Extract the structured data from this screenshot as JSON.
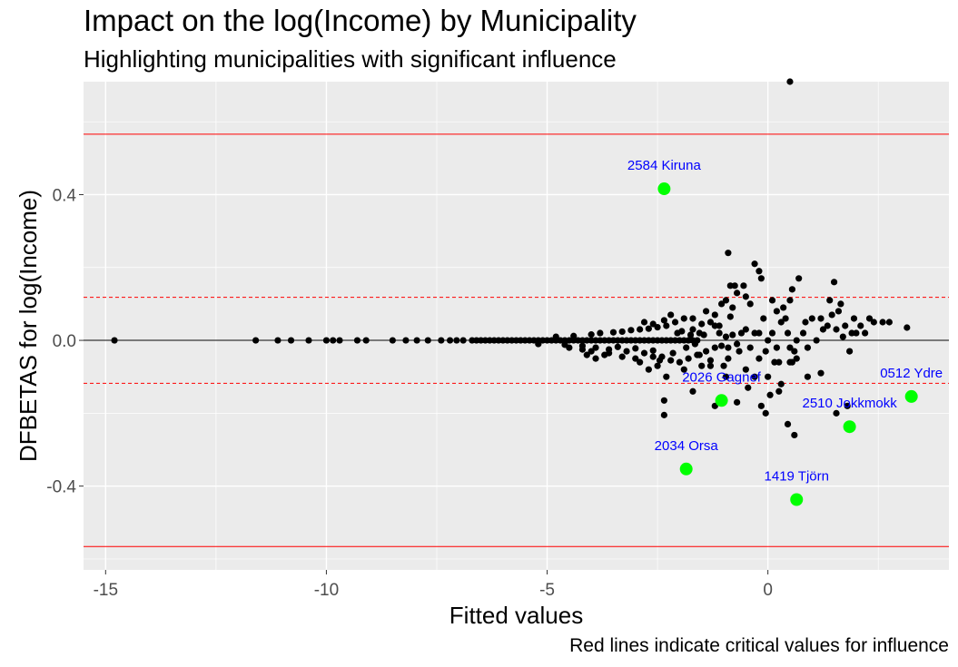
{
  "chart_data": {
    "type": "scatter",
    "title": "Impact on the log(Income) by Municipality",
    "subtitle": "Highlighting municipalities with significant influence",
    "caption": "Red lines indicate critical values for influence",
    "xlabel": "Fitted values",
    "ylabel": "DFBETAS for log(Income)",
    "xlim": [
      -15.5,
      4.1
    ],
    "ylim": [
      -0.63,
      0.71
    ],
    "x_ticks": [
      -15,
      -10,
      -5,
      0
    ],
    "x_tick_labels": [
      "-15",
      "-10",
      "-5",
      "0"
    ],
    "y_ticks": [
      -0.4,
      0.0,
      0.4
    ],
    "y_tick_labels": [
      "-0.4",
      "0.0",
      "0.4"
    ],
    "grid": true,
    "background": "#ebebeb",
    "reference_lines": [
      {
        "y": 0.0,
        "color": "#000000",
        "style": "solid"
      },
      {
        "y": 0.118,
        "color": "#ff0000",
        "style": "dashed"
      },
      {
        "y": -0.118,
        "color": "#ff0000",
        "style": "dashed"
      },
      {
        "y": 0.566,
        "color": "#ff0000",
        "style": "solid"
      },
      {
        "y": -0.566,
        "color": "#ff0000",
        "style": "solid"
      }
    ],
    "points": [
      [
        -14.8,
        0.0
      ],
      [
        -11.6,
        0.0
      ],
      [
        -11.1,
        0.0
      ],
      [
        -10.8,
        0.0
      ],
      [
        -10.4,
        0.0
      ],
      [
        -10.0,
        0.0
      ],
      [
        -9.85,
        0.0
      ],
      [
        -9.7,
        0.0
      ],
      [
        -9.3,
        0.0
      ],
      [
        -9.1,
        0.0
      ],
      [
        -8.5,
        0.0
      ],
      [
        -8.2,
        0.0
      ],
      [
        -7.95,
        0.0
      ],
      [
        -7.7,
        0.0
      ],
      [
        -7.4,
        0.0
      ],
      [
        -7.2,
        0.0
      ],
      [
        -7.05,
        0.0
      ],
      [
        -6.9,
        0.0
      ],
      [
        -6.7,
        0.0
      ],
      [
        -6.6,
        0.0
      ],
      [
        -6.5,
        0.0
      ],
      [
        -6.4,
        0.0
      ],
      [
        -6.3,
        0.0
      ],
      [
        -6.2,
        0.0
      ],
      [
        -6.1,
        0.0
      ],
      [
        -6.0,
        0.0
      ],
      [
        -5.9,
        0.0
      ],
      [
        -5.8,
        0.0
      ],
      [
        -5.7,
        0.0
      ],
      [
        -5.6,
        0.0
      ],
      [
        -5.5,
        0.0
      ],
      [
        -5.4,
        0.0
      ],
      [
        -5.3,
        0.0
      ],
      [
        -5.2,
        0.0
      ],
      [
        -5.1,
        0.0
      ],
      [
        -5.0,
        0.0
      ],
      [
        -4.9,
        0.0
      ],
      [
        -4.8,
        0.0
      ],
      [
        -4.7,
        0.0
      ],
      [
        -4.6,
        0.0
      ],
      [
        -4.5,
        0.0
      ],
      [
        -4.4,
        0.0
      ],
      [
        -4.3,
        0.0
      ],
      [
        -4.2,
        0.0
      ],
      [
        -4.1,
        0.0
      ],
      [
        -4.0,
        0.0
      ],
      [
        -3.9,
        0.0
      ],
      [
        -3.8,
        0.0
      ],
      [
        -3.7,
        0.0
      ],
      [
        -3.6,
        0.0
      ],
      [
        -3.5,
        0.0
      ],
      [
        -3.4,
        0.0
      ],
      [
        -3.3,
        0.0
      ],
      [
        -3.2,
        0.0
      ],
      [
        -3.1,
        0.0
      ],
      [
        -3.0,
        0.0
      ],
      [
        -2.9,
        0.0
      ],
      [
        -2.8,
        0.0
      ],
      [
        -2.7,
        0.0
      ],
      [
        -2.6,
        0.0
      ],
      [
        -2.5,
        0.0
      ],
      [
        -2.4,
        0.0
      ],
      [
        -2.3,
        0.0
      ],
      [
        -2.2,
        0.0
      ],
      [
        -2.1,
        0.0
      ],
      [
        -2.0,
        0.0
      ],
      [
        -1.9,
        0.0
      ],
      [
        -1.8,
        0.0
      ],
      [
        -1.7,
        0.0
      ],
      [
        -1.6,
        0.0
      ],
      [
        -5.2,
        -0.01
      ],
      [
        -4.8,
        0.01
      ],
      [
        -4.6,
        -0.012
      ],
      [
        -4.4,
        0.012
      ],
      [
        -4.5,
        -0.02
      ],
      [
        -4.2,
        -0.015
      ],
      [
        -4.0,
        0.016
      ],
      [
        -3.9,
        -0.02
      ],
      [
        -3.8,
        0.02
      ],
      [
        -3.6,
        -0.025
      ],
      [
        -3.5,
        0.022
      ],
      [
        -3.4,
        -0.018
      ],
      [
        -3.3,
        0.024
      ],
      [
        -3.2,
        -0.03
      ],
      [
        -3.1,
        0.028
      ],
      [
        -3.0,
        -0.022
      ],
      [
        -2.9,
        0.03
      ],
      [
        -2.8,
        -0.035
      ],
      [
        -2.7,
        0.032
      ],
      [
        -2.6,
        -0.028
      ],
      [
        -2.5,
        0.036
      ],
      [
        -4.2,
        -0.025
      ],
      [
        -4.0,
        -0.03
      ],
      [
        -3.7,
        -0.04
      ],
      [
        -3.0,
        -0.05
      ],
      [
        -2.9,
        -0.06
      ],
      [
        -2.8,
        0.05
      ],
      [
        -2.4,
        -0.045
      ],
      [
        -2.3,
        0.04
      ],
      [
        -2.2,
        -0.055
      ],
      [
        -2.1,
        0.05
      ],
      [
        -2.0,
        -0.06
      ],
      [
        -1.9,
        0.06
      ],
      [
        -1.8,
        -0.05
      ],
      [
        -1.7,
        0.03
      ],
      [
        -1.6,
        -0.04
      ],
      [
        -1.5,
        0.045
      ],
      [
        -1.4,
        -0.03
      ],
      [
        -1.3,
        0.05
      ],
      [
        -1.2,
        -0.02
      ],
      [
        -4.1,
        -0.04
      ],
      [
        -3.9,
        -0.05
      ],
      [
        -3.6,
        -0.035
      ],
      [
        -3.3,
        -0.045
      ],
      [
        -2.7,
        -0.08
      ],
      [
        -2.6,
        0.045
      ],
      [
        -2.5,
        -0.07
      ],
      [
        -2.3,
        -0.1
      ],
      [
        -2.2,
        0.07
      ],
      [
        -1.9,
        -0.08
      ],
      [
        -1.7,
        0.06
      ],
      [
        -1.5,
        -0.07
      ],
      [
        -1.4,
        0.08
      ],
      [
        -1.3,
        -0.055
      ],
      [
        -1.2,
        0.04
      ],
      [
        -2.6,
        -0.045
      ],
      [
        -2.45,
        -0.055
      ],
      [
        -2.35,
        0.055
      ],
      [
        -2.15,
        -0.035
      ],
      [
        -2.05,
        0.02
      ],
      [
        -1.95,
        0.025
      ],
      [
        -1.85,
        -0.02
      ],
      [
        -1.75,
        0.015
      ],
      [
        -1.65,
        -0.01
      ],
      [
        -1.55,
        0.02
      ],
      [
        -1.2,
        0.07
      ],
      [
        -1.1,
        0.02
      ],
      [
        -1.05,
        -0.015
      ],
      [
        -0.95,
        0.01
      ],
      [
        -0.9,
        -0.02
      ],
      [
        -0.8,
        0.015
      ],
      [
        -0.7,
        -0.01
      ],
      [
        -0.5,
        0.03
      ],
      [
        -0.4,
        -0.02
      ],
      [
        -0.3,
        0.02
      ],
      [
        -2.35,
        -0.205
      ],
      [
        -2.35,
        -0.165
      ],
      [
        -1.7,
        -0.14
      ],
      [
        -1.55,
        -0.04
      ],
      [
        -1.45,
        0.015
      ],
      [
        -1.3,
        -0.07
      ],
      [
        -1.2,
        -0.18
      ],
      [
        -1.1,
        0.04
      ],
      [
        -1.0,
        -0.07
      ],
      [
        -0.95,
        0.11
      ],
      [
        -1.05,
        0.1
      ],
      [
        -0.95,
        -0.1
      ],
      [
        -0.9,
        -0.05
      ],
      [
        -0.85,
        0.065
      ],
      [
        -0.8,
        0.09
      ],
      [
        -0.7,
        -0.17
      ],
      [
        -0.65,
        -0.03
      ],
      [
        -0.6,
        0.02
      ],
      [
        -0.55,
        0.15
      ],
      [
        -0.5,
        -0.08
      ],
      [
        -0.45,
        -0.13
      ],
      [
        -0.4,
        0.1
      ],
      [
        -0.9,
        0.24
      ],
      [
        -0.75,
        0.15
      ],
      [
        -0.7,
        0.13
      ],
      [
        -0.85,
        0.15
      ],
      [
        -0.3,
        0.21
      ],
      [
        -0.2,
        0.19
      ],
      [
        -0.15,
        0.17
      ],
      [
        -0.3,
        -0.1
      ],
      [
        -0.2,
        -0.05
      ],
      [
        -0.2,
        0.02
      ],
      [
        -0.1,
        0.06
      ],
      [
        -0.05,
        -0.03
      ],
      [
        0.0,
        0.0
      ],
      [
        0.1,
        0.02
      ],
      [
        0.1,
        0.11
      ],
      [
        0.2,
        -0.02
      ],
      [
        0.25,
        -0.06
      ],
      [
        0.3,
        0.05
      ],
      [
        0.4,
        0.06
      ],
      [
        0.5,
        0.11
      ],
      [
        0.45,
        0.02
      ],
      [
        0.5,
        -0.02
      ],
      [
        0.55,
        -0.06
      ],
      [
        0.6,
        -0.03
      ],
      [
        0.65,
        0.0
      ],
      [
        0.8,
        0.02
      ],
      [
        0.9,
        -0.02
      ],
      [
        0.85,
        0.05
      ],
      [
        1.0,
        0.06
      ],
      [
        1.1,
        0.0
      ],
      [
        1.2,
        -0.09
      ],
      [
        1.25,
        0.03
      ],
      [
        1.35,
        0.04
      ],
      [
        1.4,
        0.11
      ],
      [
        1.45,
        0.07
      ],
      [
        1.5,
        0.16
      ],
      [
        1.55,
        0.03
      ],
      [
        1.6,
        0.08
      ],
      [
        1.7,
        0.01
      ],
      [
        1.75,
        0.04
      ],
      [
        1.85,
        -0.03
      ],
      [
        1.9,
        0.02
      ],
      [
        1.95,
        0.06
      ],
      [
        2.0,
        0.02
      ],
      [
        2.1,
        0.04
      ],
      [
        2.2,
        0.02
      ],
      [
        2.3,
        0.06
      ],
      [
        2.4,
        0.05
      ],
      [
        2.6,
        0.05
      ],
      [
        2.75,
        0.05
      ],
      [
        3.15,
        0.035
      ],
      [
        0.5,
        -0.06
      ],
      [
        0.65,
        -0.05
      ],
      [
        0.45,
        -0.23
      ],
      [
        0.6,
        -0.26
      ],
      [
        1.8,
        -0.18
      ],
      [
        1.55,
        -0.2
      ],
      [
        0.9,
        -0.1
      ],
      [
        0.3,
        -0.12
      ],
      [
        0.25,
        -0.14
      ],
      [
        0.15,
        -0.06
      ],
      [
        0.0,
        -0.1
      ],
      [
        -0.15,
        -0.18
      ],
      [
        -0.05,
        -0.2
      ],
      [
        0.05,
        -0.15
      ],
      [
        -0.5,
        0.12
      ],
      [
        0.55,
        0.14
      ],
      [
        0.7,
        0.17
      ],
      [
        0.5,
        0.71
      ],
      [
        1.2,
        0.06
      ],
      [
        1.65,
        0.1
      ],
      [
        0.35,
        0.09
      ],
      [
        0.2,
        0.08
      ]
    ],
    "highlighted": [
      {
        "label": "2584 Kiruna",
        "x": -2.35,
        "y": 0.416
      },
      {
        "label": "0512 Ydre",
        "x": 3.25,
        "y": -0.154
      },
      {
        "label": "2026 Gagnef",
        "x": -1.05,
        "y": -0.165
      },
      {
        "label": "2510 Jokkmokk",
        "x": 1.85,
        "y": -0.237
      },
      {
        "label": "2034 Orsa",
        "x": -1.85,
        "y": -0.353
      },
      {
        "label": "1419 Tjörn",
        "x": 0.65,
        "y": -0.437
      }
    ],
    "point_color": "#000000",
    "highlight_color": "#00ff00",
    "label_color": "#0000ff"
  }
}
